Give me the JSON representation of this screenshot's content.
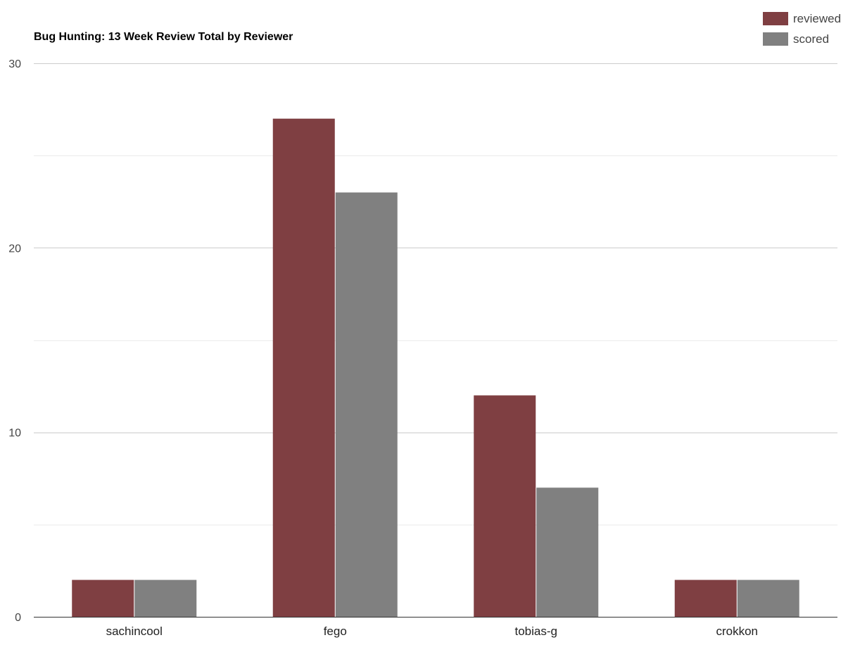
{
  "chart_data": {
    "type": "bar",
    "title": "Bug Hunting: 13 Week Review Total by Reviewer",
    "xlabel": "",
    "ylabel": "",
    "categories": [
      "sachincool",
      "fego",
      "tobias-g",
      "crokkon"
    ],
    "series": [
      {
        "name": "reviewed",
        "color": "#7f3f42",
        "values": [
          2,
          27,
          12,
          2
        ]
      },
      {
        "name": "scored",
        "color": "#808080",
        "values": [
          2,
          23,
          7,
          2
        ]
      }
    ],
    "ylim": [
      0,
      30
    ],
    "major_ticks": [
      0,
      10,
      20,
      30
    ],
    "minor_ticks": [
      5,
      15,
      25
    ],
    "grid": true,
    "legend_position": "top-right"
  }
}
